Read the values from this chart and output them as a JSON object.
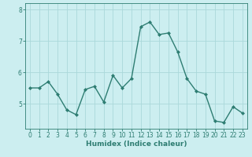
{
  "x": [
    0,
    1,
    2,
    3,
    4,
    5,
    6,
    7,
    8,
    9,
    10,
    11,
    12,
    13,
    14,
    15,
    16,
    17,
    18,
    19,
    20,
    21,
    22,
    23
  ],
  "y": [
    5.5,
    5.5,
    5.7,
    5.3,
    4.8,
    4.65,
    5.45,
    5.55,
    5.05,
    5.9,
    5.5,
    5.8,
    7.45,
    7.6,
    7.2,
    7.25,
    6.65,
    5.8,
    5.4,
    5.3,
    4.45,
    4.4,
    4.9,
    4.7
  ],
  "line_color": "#2e7d72",
  "marker": "D",
  "marker_size": 2.0,
  "bg_color": "#cceef0",
  "grid_color": "#aad8da",
  "axis_color": "#2e7d72",
  "xlabel": "Humidex (Indice chaleur)",
  "xlabel_fontsize": 6.5,
  "tick_fontsize": 5.5,
  "ylim": [
    4.2,
    8.2
  ],
  "xlim": [
    -0.5,
    23.5
  ],
  "yticks": [
    5,
    6,
    7,
    8
  ],
  "xticks": [
    0,
    1,
    2,
    3,
    4,
    5,
    6,
    7,
    8,
    9,
    10,
    11,
    12,
    13,
    14,
    15,
    16,
    17,
    18,
    19,
    20,
    21,
    22,
    23
  ],
  "line_width": 1.0
}
